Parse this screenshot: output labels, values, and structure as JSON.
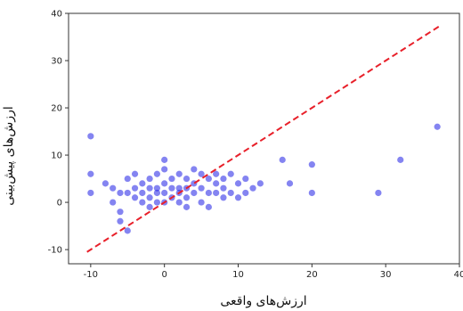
{
  "chart_data": {
    "type": "scatter",
    "title": "",
    "xlabel": "ارزش‌های واقعی",
    "ylabel": "ارزش‌های پیش‌بینی",
    "xlim": [
      -13,
      40
    ],
    "ylim": [
      -13,
      40
    ],
    "xticks": [
      -10,
      0,
      10,
      20,
      30,
      40
    ],
    "yticks": [
      -10,
      0,
      10,
      20,
      30,
      40
    ],
    "grid": false,
    "colors": {
      "points": "#1f1fe6",
      "reference_line": "#e8202a",
      "axes": "#333333"
    },
    "series": [
      {
        "kind": "scatter",
        "x": [
          -10,
          -10,
          -10,
          -8,
          -7,
          -7,
          -6,
          -6,
          -6,
          -5,
          -5,
          -5,
          -4,
          -4,
          -4,
          -3,
          -3,
          -3,
          -2,
          -2,
          -2,
          -2,
          -1,
          -1,
          -1,
          -1,
          0,
          0,
          0,
          0,
          0,
          1,
          1,
          1,
          2,
          2,
          2,
          2,
          3,
          3,
          3,
          3,
          4,
          4,
          4,
          5,
          5,
          5,
          6,
          6,
          6,
          7,
          7,
          7,
          8,
          8,
          8,
          9,
          9,
          10,
          10,
          11,
          11,
          12,
          13,
          16,
          17,
          20,
          20,
          29,
          32,
          37
        ],
        "y": [
          14,
          6,
          2,
          4,
          3,
          0,
          -4,
          -2,
          2,
          5,
          2,
          -6,
          6,
          3,
          1,
          4,
          2,
          0,
          5,
          3,
          1,
          -1,
          6,
          3,
          2,
          0,
          9,
          7,
          4,
          2,
          0,
          5,
          3,
          1,
          6,
          3,
          2,
          0,
          5,
          3,
          1,
          -1,
          7,
          4,
          2,
          6,
          3,
          0,
          5,
          2,
          -1,
          6,
          4,
          2,
          5,
          3,
          1,
          6,
          2,
          4,
          1,
          5,
          2,
          3,
          4,
          9,
          4,
          8,
          2,
          2,
          9,
          16
        ]
      },
      {
        "kind": "line",
        "style": "dashed",
        "x": [
          -10.5,
          37.5
        ],
        "y": [
          -10.5,
          37.5
        ]
      }
    ]
  }
}
